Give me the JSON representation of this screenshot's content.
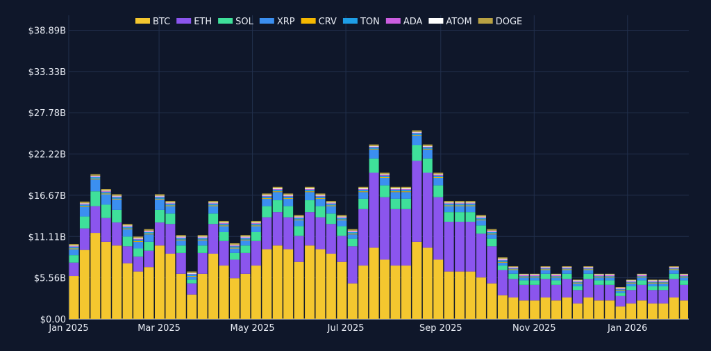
{
  "chart_data": {
    "type": "bar",
    "stacked": true,
    "title": "",
    "xlabel": "",
    "ylabel": "",
    "ylim": [
      0,
      40.9
    ],
    "xlim": [
      "2025-01-01",
      "2026-02-10"
    ],
    "grid": true,
    "legend_placement": "top-center",
    "background": "#0f172a",
    "y_ticks": [
      {
        "value": 0,
        "label": "$0.00"
      },
      {
        "value": 5.556,
        "label": "$5.56B"
      },
      {
        "value": 11.111,
        "label": "$11.11B"
      },
      {
        "value": 16.667,
        "label": "$16.67B"
      },
      {
        "value": 22.222,
        "label": "$22.22B"
      },
      {
        "value": 27.778,
        "label": "$27.78B"
      },
      {
        "value": 33.333,
        "label": "$33.33B"
      },
      {
        "value": 38.889,
        "label": "$38.89B"
      }
    ],
    "x_ticks": [
      {
        "value": "2025-01-01",
        "label": "Jan 2025"
      },
      {
        "value": "2025-03-01",
        "label": "Mar 2025"
      },
      {
        "value": "2025-05-01",
        "label": "May 2025"
      },
      {
        "value": "2025-07-01",
        "label": "Jul 2025"
      },
      {
        "value": "2025-09-01",
        "label": "Sep 2025"
      },
      {
        "value": "2025-11-01",
        "label": "Nov 2025"
      },
      {
        "value": "2026-01-01",
        "label": "Jan 2026"
      }
    ],
    "x": [
      "2025-01-01",
      "2025-01-08",
      "2025-01-15",
      "2025-01-22",
      "2025-01-29",
      "2025-02-05",
      "2025-02-12",
      "2025-02-19",
      "2025-02-26",
      "2025-03-05",
      "2025-03-12",
      "2025-03-19",
      "2025-03-26",
      "2025-04-02",
      "2025-04-09",
      "2025-04-16",
      "2025-04-23",
      "2025-04-30",
      "2025-05-07",
      "2025-05-14",
      "2025-05-21",
      "2025-05-28",
      "2025-06-04",
      "2025-06-11",
      "2025-06-18",
      "2025-06-25",
      "2025-07-02",
      "2025-07-09",
      "2025-07-16",
      "2025-07-23",
      "2025-07-30",
      "2025-08-06",
      "2025-08-13",
      "2025-08-20",
      "2025-08-27",
      "2025-09-03",
      "2025-09-10",
      "2025-09-17",
      "2025-09-24",
      "2025-10-01",
      "2025-10-08",
      "2025-10-15",
      "2025-10-22",
      "2025-10-29",
      "2025-11-05",
      "2025-11-12",
      "2025-11-19",
      "2025-11-26",
      "2025-12-03",
      "2025-12-10",
      "2025-12-17",
      "2025-12-24",
      "2025-12-31",
      "2026-01-07",
      "2026-01-14",
      "2026-01-21",
      "2026-01-28",
      "2026-02-04"
    ],
    "series": [
      {
        "name": "BTC",
        "color": "#f4c72f",
        "values": [
          5.8,
          9.3,
          11.6,
          10.4,
          9.9,
          7.5,
          6.4,
          7.0,
          9.9,
          8.8,
          6.1,
          3.3,
          6.1,
          8.8,
          7.2,
          5.5,
          6.1,
          7.2,
          9.4,
          9.9,
          9.4,
          7.7,
          9.9,
          9.4,
          8.8,
          7.7,
          4.8,
          7.2,
          9.6,
          8.0,
          7.2,
          7.2,
          10.4,
          9.6,
          8.0,
          6.4,
          6.4,
          6.4,
          5.6,
          4.8,
          3.2,
          2.9,
          2.5,
          2.5,
          2.9,
          2.5,
          2.9,
          2.1,
          2.9,
          2.5,
          2.5,
          1.7,
          2.1,
          2.5,
          2.1,
          2.1,
          2.9,
          2.5
        ]
      },
      {
        "name": "ETH",
        "color": "#8b55ee",
        "values": [
          1.8,
          2.9,
          3.6,
          3.2,
          3.1,
          2.3,
          2.0,
          2.2,
          3.1,
          4.0,
          2.8,
          1.5,
          2.8,
          4.0,
          3.3,
          2.5,
          2.8,
          3.3,
          4.3,
          4.5,
          4.3,
          3.5,
          4.5,
          4.3,
          4.0,
          3.5,
          5.0,
          7.6,
          10.1,
          8.4,
          7.6,
          7.6,
          10.9,
          10.1,
          8.4,
          6.7,
          6.7,
          6.7,
          5.9,
          5.0,
          3.4,
          2.5,
          2.1,
          2.1,
          2.5,
          2.1,
          2.5,
          1.8,
          2.5,
          2.1,
          2.1,
          1.4,
          1.8,
          2.1,
          1.8,
          1.8,
          2.5,
          2.1
        ]
      },
      {
        "name": "SOL",
        "color": "#3fe09a",
        "values": [
          1.0,
          1.6,
          2.0,
          1.8,
          1.7,
          1.3,
          1.1,
          1.2,
          1.7,
          1.4,
          1.0,
          0.5,
          1.0,
          1.4,
          1.2,
          0.9,
          1.0,
          1.2,
          1.5,
          1.6,
          1.5,
          1.3,
          1.6,
          1.5,
          1.4,
          1.3,
          1.0,
          1.4,
          1.9,
          1.6,
          1.4,
          1.4,
          2.1,
          1.9,
          1.6,
          1.3,
          1.3,
          1.3,
          1.1,
          1.0,
          0.6,
          0.7,
          0.6,
          0.6,
          0.7,
          0.6,
          0.7,
          0.5,
          0.7,
          0.6,
          0.6,
          0.4,
          0.5,
          0.6,
          0.5,
          0.5,
          0.7,
          0.6
        ]
      },
      {
        "name": "XRP",
        "color": "#3b8ff0",
        "values": [
          0.8,
          1.3,
          1.6,
          1.4,
          1.4,
          1.0,
          0.9,
          1.0,
          1.4,
          1.0,
          0.7,
          0.4,
          0.7,
          1.0,
          0.8,
          0.6,
          0.7,
          0.8,
          1.0,
          1.1,
          1.0,
          0.8,
          1.1,
          1.0,
          1.0,
          0.8,
          0.6,
          0.9,
          1.2,
          1.0,
          0.9,
          0.9,
          1.3,
          1.2,
          1.0,
          0.8,
          0.8,
          0.8,
          0.7,
          0.6,
          0.4,
          0.5,
          0.4,
          0.4,
          0.5,
          0.4,
          0.5,
          0.4,
          0.5,
          0.4,
          0.4,
          0.3,
          0.4,
          0.4,
          0.4,
          0.4,
          0.5,
          0.4
        ]
      },
      {
        "name": "CRV",
        "color": "#f5b800",
        "values": [
          0.1,
          0.1,
          0.1,
          0.1,
          0.1,
          0.1,
          0.1,
          0.1,
          0.1,
          0.1,
          0.1,
          0.1,
          0.1,
          0.1,
          0.1,
          0.1,
          0.1,
          0.1,
          0.1,
          0.1,
          0.1,
          0.1,
          0.1,
          0.1,
          0.1,
          0.1,
          0.1,
          0.1,
          0.1,
          0.1,
          0.1,
          0.1,
          0.1,
          0.1,
          0.1,
          0.1,
          0.1,
          0.1,
          0.1,
          0.1,
          0.1,
          0.1,
          0.1,
          0.1,
          0.1,
          0.1,
          0.1,
          0.1,
          0.1,
          0.1,
          0.1,
          0.1,
          0.1,
          0.1,
          0.1,
          0.1,
          0.1,
          0.1
        ]
      },
      {
        "name": "TON",
        "color": "#1e9ee6",
        "values": [
          0.2,
          0.2,
          0.2,
          0.2,
          0.2,
          0.2,
          0.2,
          0.2,
          0.2,
          0.2,
          0.2,
          0.2,
          0.2,
          0.2,
          0.2,
          0.2,
          0.2,
          0.2,
          0.2,
          0.2,
          0.2,
          0.2,
          0.2,
          0.2,
          0.2,
          0.2,
          0.2,
          0.2,
          0.2,
          0.2,
          0.2,
          0.2,
          0.2,
          0.2,
          0.2,
          0.2,
          0.2,
          0.2,
          0.2,
          0.2,
          0.2,
          0.1,
          0.1,
          0.1,
          0.1,
          0.1,
          0.1,
          0.1,
          0.1,
          0.1,
          0.1,
          0.1,
          0.1,
          0.1,
          0.1,
          0.1,
          0.1,
          0.1
        ]
      },
      {
        "name": "ADA",
        "color": "#cc5ee0",
        "values": [
          0.1,
          0.1,
          0.1,
          0.1,
          0.1,
          0.1,
          0.1,
          0.1,
          0.1,
          0.1,
          0.1,
          0.1,
          0.1,
          0.1,
          0.1,
          0.1,
          0.1,
          0.1,
          0.1,
          0.1,
          0.1,
          0.1,
          0.1,
          0.1,
          0.1,
          0.1,
          0.1,
          0.1,
          0.1,
          0.1,
          0.1,
          0.1,
          0.1,
          0.1,
          0.1,
          0.1,
          0.1,
          0.1,
          0.1,
          0.1,
          0.1,
          0.1,
          0.1,
          0.1,
          0.1,
          0.1,
          0.1,
          0.1,
          0.1,
          0.1,
          0.1,
          0.1,
          0.1,
          0.1,
          0.1,
          0.1,
          0.1,
          0.1
        ]
      },
      {
        "name": "ATOM",
        "color": "#ffffff",
        "values": [
          0.1,
          0.1,
          0.1,
          0.1,
          0.1,
          0.1,
          0.1,
          0.1,
          0.1,
          0.1,
          0.1,
          0.1,
          0.1,
          0.1,
          0.1,
          0.1,
          0.1,
          0.1,
          0.1,
          0.1,
          0.1,
          0.1,
          0.1,
          0.1,
          0.1,
          0.1,
          0.1,
          0.1,
          0.1,
          0.1,
          0.1,
          0.1,
          0.1,
          0.1,
          0.1,
          0.1,
          0.1,
          0.1,
          0.1,
          0.1,
          0.1,
          0.1,
          0.1,
          0.1,
          0.1,
          0.1,
          0.1,
          0.1,
          0.1,
          0.1,
          0.1,
          0.1,
          0.1,
          0.1,
          0.1,
          0.1,
          0.1,
          0.1
        ]
      },
      {
        "name": "DOGE",
        "color": "#b9a243",
        "values": [
          0.2,
          0.2,
          0.2,
          0.2,
          0.2,
          0.2,
          0.2,
          0.2,
          0.2,
          0.2,
          0.2,
          0.2,
          0.2,
          0.2,
          0.2,
          0.2,
          0.2,
          0.2,
          0.2,
          0.2,
          0.2,
          0.2,
          0.2,
          0.2,
          0.2,
          0.2,
          0.2,
          0.2,
          0.2,
          0.2,
          0.2,
          0.2,
          0.2,
          0.2,
          0.2,
          0.2,
          0.2,
          0.2,
          0.2,
          0.2,
          0.2,
          0.1,
          0.1,
          0.1,
          0.1,
          0.1,
          0.1,
          0.1,
          0.1,
          0.1,
          0.1,
          0.1,
          0.1,
          0.1,
          0.1,
          0.1,
          0.1,
          0.1
        ]
      }
    ]
  }
}
